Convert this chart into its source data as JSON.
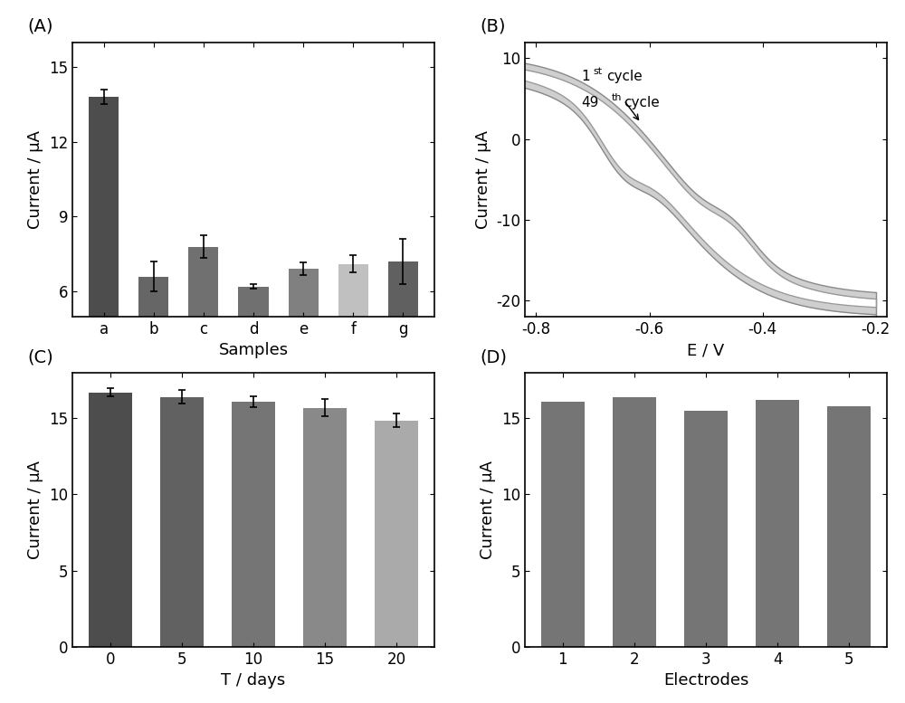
{
  "A": {
    "categories": [
      "a",
      "b",
      "c",
      "d",
      "e",
      "f",
      "g"
    ],
    "values": [
      13.8,
      6.6,
      7.8,
      6.2,
      6.9,
      7.1,
      7.2
    ],
    "errors": [
      0.3,
      0.6,
      0.45,
      0.1,
      0.25,
      0.35,
      0.9
    ],
    "colors": [
      "#4d4d4d",
      "#666666",
      "#707070",
      "#707070",
      "#808080",
      "#c0c0c0",
      "#606060"
    ],
    "xlabel": "Samples",
    "ylabel": "Current / μA",
    "ylim": [
      5.0,
      16.0
    ],
    "yticks": [
      6,
      9,
      12,
      15
    ]
  },
  "B": {
    "xlabel": "E / V",
    "ylabel": "Current / μA",
    "xlim": [
      -0.82,
      -0.18
    ],
    "ylim": [
      -22,
      12
    ],
    "yticks": [
      -20,
      -10,
      0,
      10
    ],
    "xticks": [
      -0.8,
      -0.6,
      -0.4,
      -0.2
    ],
    "line_color": "#888888",
    "fill_color": "#cccccc"
  },
  "C": {
    "categories": [
      "0",
      "5",
      "10",
      "15",
      "20"
    ],
    "values": [
      16.7,
      16.4,
      16.1,
      15.7,
      14.85
    ],
    "errors": [
      0.25,
      0.45,
      0.35,
      0.55,
      0.45
    ],
    "colors": [
      "#4d4d4d",
      "#616161",
      "#757575",
      "#898989",
      "#aaaaaa"
    ],
    "xlabel": "T / days",
    "ylabel": "Current / μA",
    "ylim": [
      0,
      18
    ],
    "yticks": [
      0,
      5,
      10,
      15
    ]
  },
  "D": {
    "categories": [
      "1",
      "2",
      "3",
      "4",
      "5"
    ],
    "values": [
      16.1,
      16.4,
      15.5,
      16.2,
      15.8
    ],
    "colors": [
      "#757575",
      "#757575",
      "#757575",
      "#757575",
      "#757575"
    ],
    "xlabel": "Electrodes",
    "ylabel": "Current / μA",
    "ylim": [
      0,
      18
    ],
    "yticks": [
      0,
      5,
      10,
      15
    ]
  },
  "panel_labels": [
    "(A)",
    "(B)",
    "(C)",
    "(D)"
  ],
  "background_color": "#ffffff",
  "label_fontsize": 13,
  "tick_fontsize": 12
}
